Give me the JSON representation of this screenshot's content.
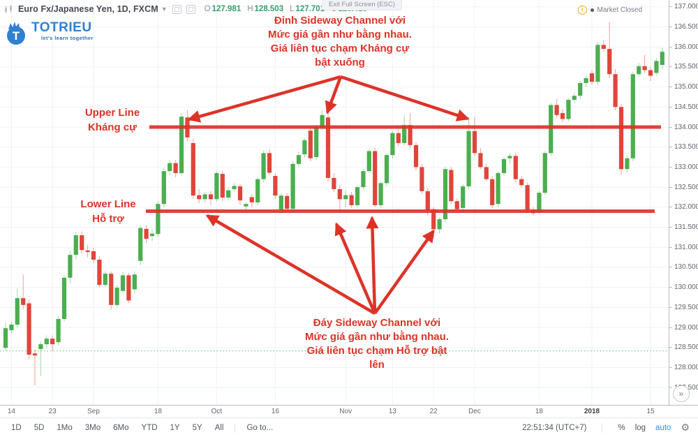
{
  "header": {
    "title": "Euro Fx/Japanese Yen, 1D, FXCM",
    "ohlc": {
      "o_label": "O",
      "o_value": "127.981",
      "h_label": "H",
      "h_value": "128.503",
      "l_label": "L",
      "l_value": "127.701",
      "c_label": "C",
      "c_value": "128.415"
    }
  },
  "exit_fullscreen_label": "Exit Full Screen (ESC)",
  "market_status": {
    "text": "Market Closed",
    "info_glyph": "!"
  },
  "logo": {
    "name": "TOTRIEU",
    "tagline": "let's learn together"
  },
  "annotations": {
    "top_note": "Đỉnh Sideway Channel với\nMức giá gần như bằng nhau.\nGiá liên tục chạm Kháng cự\nbật xuống",
    "bottom_note": "Đáy Sideway Channel với\nMức giá gần như bằng nhau.\nGiá liên tục chạm Hỗ trợ bật\nlên",
    "upper_line_label": "Upper Line\nKháng cự",
    "lower_line_label": "Lower Line\nHỗ trợ"
  },
  "chart_data": {
    "type": "candlestick",
    "symbol": "Euro Fx/Japanese Yen",
    "interval": "1D",
    "exchange": "FXCM",
    "ylim": [
      127.3,
      137.1
    ],
    "grid": true,
    "price_ticks": [
      "137.000",
      "136.500",
      "136.000",
      "135.500",
      "135.000",
      "134.500",
      "134.000",
      "133.500",
      "133.000",
      "132.500",
      "132.000",
      "131.500",
      "131.000",
      "130.500",
      "130.000",
      "129.500",
      "129.000",
      "128.500",
      "128.000",
      "127.500"
    ],
    "time_ticks": [
      {
        "label": "14",
        "i": 1
      },
      {
        "label": "23",
        "i": 8
      },
      {
        "label": "Sep",
        "i": 15
      },
      {
        "label": "18",
        "i": 26
      },
      {
        "label": "Oct",
        "i": 36
      },
      {
        "label": "16",
        "i": 46
      },
      {
        "label": "Nov",
        "i": 58
      },
      {
        "label": "13",
        "i": 66
      },
      {
        "label": "22",
        "i": 73
      },
      {
        "label": "Dec",
        "i": 80
      },
      {
        "label": "18",
        "i": 91
      },
      {
        "label": "2018",
        "i": 100,
        "bold": true
      },
      {
        "label": "15",
        "i": 110
      }
    ],
    "candles": [
      [
        128.49,
        129.12,
        128.42,
        128.98
      ],
      [
        128.93,
        129.15,
        128.85,
        129.07
      ],
      [
        129.07,
        129.97,
        129.0,
        129.73
      ],
      [
        129.73,
        130.32,
        129.45,
        129.56
      ],
      [
        129.6,
        129.7,
        128.2,
        128.32
      ],
      [
        128.35,
        128.45,
        127.55,
        128.3
      ],
      [
        128.46,
        128.65,
        127.78,
        128.58
      ],
      [
        128.58,
        128.8,
        128.48,
        128.72
      ],
      [
        128.72,
        128.8,
        128.4,
        128.58
      ],
      [
        128.63,
        129.28,
        128.55,
        129.21
      ],
      [
        129.21,
        130.3,
        129.15,
        130.24
      ],
      [
        130.24,
        130.9,
        130.1,
        130.81
      ],
      [
        130.81,
        131.38,
        130.7,
        131.3
      ],
      [
        131.3,
        131.4,
        130.85,
        130.93
      ],
      [
        130.92,
        131.05,
        130.75,
        130.88
      ],
      [
        130.9,
        130.98,
        130.6,
        130.69
      ],
      [
        130.69,
        130.78,
        130.0,
        130.06
      ],
      [
        130.06,
        130.4,
        130.0,
        130.34
      ],
      [
        130.34,
        130.4,
        129.45,
        129.56
      ],
      [
        129.56,
        130.05,
        129.5,
        129.99
      ],
      [
        129.91,
        130.38,
        129.85,
        130.3
      ],
      [
        130.3,
        130.36,
        129.6,
        129.67
      ],
      [
        129.95,
        130.4,
        129.85,
        130.32
      ],
      [
        130.66,
        131.55,
        130.55,
        131.48
      ],
      [
        131.46,
        131.55,
        131.1,
        131.21
      ],
      [
        131.28,
        131.45,
        131.15,
        131.34
      ],
      [
        131.33,
        132.15,
        131.25,
        132.08
      ],
      [
        132.08,
        132.98,
        132.0,
        132.9
      ],
      [
        132.9,
        133.18,
        132.8,
        133.1
      ],
      [
        133.1,
        133.18,
        132.75,
        132.85
      ],
      [
        132.85,
        134.35,
        132.8,
        134.26
      ],
      [
        134.24,
        134.42,
        133.65,
        133.74
      ],
      [
        133.6,
        133.7,
        132.2,
        132.29
      ],
      [
        132.3,
        132.45,
        132.1,
        132.2
      ],
      [
        132.2,
        132.38,
        132.12,
        132.32
      ],
      [
        132.32,
        132.4,
        132.05,
        132.2
      ],
      [
        132.2,
        132.9,
        132.14,
        132.85
      ],
      [
        132.83,
        132.9,
        132.15,
        132.24
      ],
      [
        132.24,
        132.5,
        132.18,
        132.42
      ],
      [
        132.45,
        132.6,
        132.38,
        132.53
      ],
      [
        132.52,
        132.58,
        132.05,
        132.17
      ],
      [
        132.02,
        132.12,
        131.9,
        132.08
      ],
      [
        132.25,
        132.33,
        132.0,
        132.12
      ],
      [
        132.12,
        132.75,
        132.05,
        132.7
      ],
      [
        132.7,
        133.42,
        132.62,
        133.35
      ],
      [
        133.35,
        133.45,
        132.8,
        132.86
      ],
      [
        132.78,
        132.85,
        132.2,
        132.29
      ],
      [
        131.94,
        132.35,
        131.9,
        132.29
      ],
      [
        132.28,
        132.35,
        131.92,
        131.96
      ],
      [
        131.96,
        133.15,
        131.9,
        133.08
      ],
      [
        133.08,
        133.38,
        133.0,
        133.3
      ],
      [
        133.32,
        133.72,
        133.25,
        133.67
      ],
      [
        133.91,
        133.98,
        133.15,
        133.22
      ],
      [
        133.25,
        134.05,
        133.18,
        134.0
      ],
      [
        134.0,
        134.42,
        133.92,
        134.3
      ],
      [
        134.24,
        134.38,
        132.65,
        132.73
      ],
      [
        132.73,
        132.85,
        132.38,
        132.45
      ],
      [
        132.45,
        132.55,
        131.95,
        132.2
      ],
      [
        132.2,
        132.42,
        132.0,
        132.3
      ],
      [
        132.3,
        132.38,
        131.98,
        132.05
      ],
      [
        132.05,
        132.55,
        132.0,
        132.5
      ],
      [
        132.5,
        132.95,
        132.42,
        132.9
      ],
      [
        132.9,
        133.45,
        132.85,
        133.4
      ],
      [
        133.4,
        133.48,
        132.0,
        132.05
      ],
      [
        132.05,
        132.65,
        131.98,
        132.6
      ],
      [
        132.6,
        133.35,
        132.52,
        133.3
      ],
      [
        133.3,
        133.9,
        133.22,
        133.85
      ],
      [
        133.85,
        133.95,
        133.52,
        133.6
      ],
      [
        133.6,
        134.3,
        133.55,
        134.05
      ],
      [
        134.05,
        134.35,
        133.48,
        133.55
      ],
      [
        133.55,
        133.62,
        132.92,
        133.0
      ],
      [
        133.0,
        133.08,
        132.32,
        132.4
      ],
      [
        132.4,
        132.48,
        131.78,
        131.92
      ],
      [
        131.95,
        132.0,
        131.22,
        131.45
      ],
      [
        131.45,
        131.75,
        131.35,
        131.7
      ],
      [
        131.7,
        133.0,
        131.62,
        132.95
      ],
      [
        132.93,
        133.0,
        132.08,
        132.15
      ],
      [
        132.15,
        132.22,
        131.88,
        131.95
      ],
      [
        131.98,
        132.58,
        131.92,
        132.52
      ],
      [
        132.52,
        134.25,
        132.45,
        133.9
      ],
      [
        133.9,
        134.26,
        133.28,
        133.35
      ],
      [
        133.35,
        133.48,
        132.95,
        133.0
      ],
      [
        133.0,
        133.1,
        132.65,
        132.7
      ],
      [
        132.7,
        132.78,
        131.98,
        132.05
      ],
      [
        132.08,
        132.9,
        132.0,
        132.85
      ],
      [
        132.85,
        133.25,
        132.78,
        133.2
      ],
      [
        133.22,
        133.35,
        133.1,
        133.28
      ],
      [
        133.28,
        133.35,
        132.62,
        132.7
      ],
      [
        132.7,
        132.78,
        132.48,
        132.55
      ],
      [
        132.55,
        132.62,
        131.87,
        131.93
      ],
      [
        131.93,
        132.0,
        131.78,
        131.85
      ],
      [
        131.88,
        132.4,
        131.82,
        132.36
      ],
      [
        132.36,
        133.4,
        132.3,
        133.35
      ],
      [
        133.35,
        134.6,
        133.28,
        134.55
      ],
      [
        134.55,
        134.7,
        134.22,
        134.3
      ],
      [
        134.35,
        134.45,
        134.12,
        134.2
      ],
      [
        134.2,
        134.72,
        134.15,
        134.68
      ],
      [
        134.68,
        134.85,
        134.6,
        134.78
      ],
      [
        134.78,
        135.15,
        134.7,
        135.1
      ],
      [
        135.1,
        135.28,
        135.0,
        135.22
      ],
      [
        135.34,
        135.42,
        135.05,
        135.13
      ],
      [
        135.13,
        136.12,
        135.05,
        136.05
      ],
      [
        136.05,
        136.18,
        135.88,
        135.95
      ],
      [
        135.95,
        136.62,
        135.22,
        135.32
      ],
      [
        135.32,
        135.45,
        134.42,
        134.5
      ],
      [
        134.5,
        134.58,
        132.8,
        132.95
      ],
      [
        132.95,
        133.3,
        132.85,
        133.22
      ],
      [
        133.22,
        135.38,
        133.15,
        135.32
      ],
      [
        135.32,
        135.6,
        135.25,
        135.52
      ],
      [
        135.52,
        135.8,
        135.35,
        135.42
      ],
      [
        135.42,
        135.5,
        135.15,
        135.28
      ],
      [
        135.35,
        135.72,
        135.28,
        135.65
      ],
      [
        135.55,
        135.98,
        135.45,
        135.88
      ]
    ],
    "resistance": {
      "price": 134.0,
      "x_from": 214,
      "x_to": 947
    },
    "support": {
      "price": 131.9,
      "x_from": 209,
      "x_to": 938
    },
    "last_price": 128.415,
    "arrows_top": {
      "from": [
        488,
        110
      ],
      "tips": [
        [
          271,
          171
        ],
        [
          469,
          161
        ],
        [
          670,
          170
        ]
      ]
    },
    "arrows_bottom": {
      "from": [
        537,
        449
      ],
      "tips": [
        [
          297,
          309
        ],
        [
          482,
          321
        ],
        [
          533,
          312
        ],
        [
          621,
          331
        ]
      ]
    },
    "colors": {
      "up": "#4bae4f",
      "down": "#e0453a",
      "annotation": "#dd3327",
      "last_price_line": "#6fce72",
      "grid": "#eef2f6"
    }
  },
  "toolbar": {
    "ranges": [
      "1D",
      "5D",
      "1Mo",
      "3Mo",
      "6Mo",
      "YTD",
      "1Y",
      "5Y",
      "All"
    ],
    "goto_label": "Go to...",
    "clock": "22:51:34 (UTC+7)",
    "percent_label": "%",
    "log_label": "log",
    "auto_label": "auto"
  },
  "pager_glyph": "»"
}
